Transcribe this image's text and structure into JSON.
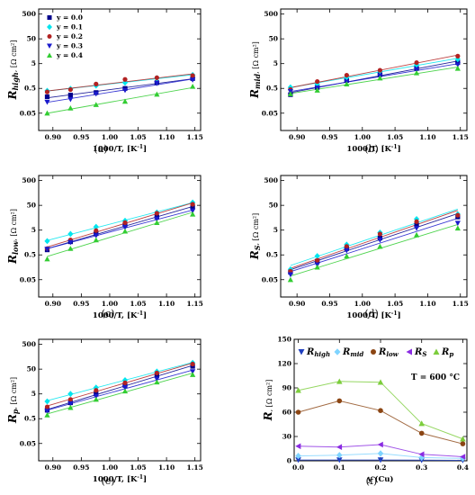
{
  "colors": {
    "y=0.0": "#00008b",
    "y=0.1": "#00e5ee",
    "y=0.2": "#b22222",
    "y=0.3": "#1a1acd",
    "y=0.4": "#32cd32",
    "R_high": "#1f3fbf",
    "R_mid": "#7fd4ff",
    "R_low": "#8b4513",
    "R_S": "#8a2be2",
    "R_p": "#7ccd3c"
  },
  "chart_data": [
    {
      "panel": "(a)",
      "type": "scatter",
      "y_scale": "log",
      "ylim": [
        0.01,
        800
      ],
      "xlim": [
        0.875,
        1.16
      ],
      "yticks": [
        "0.05",
        "0.5",
        "5",
        "50",
        "500"
      ],
      "xticks": [
        "0.90",
        "0.95",
        "1.00",
        "1.05",
        "1.10",
        "1.15"
      ],
      "xlabel": "1000/T, [K⁻¹]",
      "ylabel": "R_high, [Ω cm²]",
      "legend_position": "top-left",
      "x": [
        0.89,
        0.931,
        0.976,
        1.027,
        1.083,
        1.146
      ],
      "series": [
        {
          "name": "y = 0.0",
          "marker": "square",
          "values": [
            0.23,
            0.27,
            0.34,
            0.5,
            0.85,
            1.25
          ]
        },
        {
          "name": "y = 0.1",
          "marker": "diamond",
          "values": [
            0.4,
            0.48,
            0.65,
            0.85,
            1.3,
            1.75
          ]
        },
        {
          "name": "y = 0.2",
          "marker": "circle",
          "values": [
            0.36,
            0.45,
            0.75,
            1.15,
            1.35,
            1.65
          ]
        },
        {
          "name": "y = 0.3",
          "marker": "triangle-down",
          "values": [
            0.14,
            0.18,
            0.3,
            0.42,
            0.8,
            1.1
          ]
        },
        {
          "name": "y = 0.4",
          "marker": "triangle-up",
          "values": [
            0.05,
            0.08,
            0.11,
            0.15,
            0.29,
            0.6
          ]
        }
      ]
    },
    {
      "panel": "(b)",
      "type": "scatter",
      "y_scale": "log",
      "ylim": [
        0.01,
        800
      ],
      "xlim": [
        0.875,
        1.16
      ],
      "yticks": [
        "0.05",
        "0.5",
        "5",
        "50",
        "500"
      ],
      "xticks": [
        "0.90",
        "0.95",
        "1.00",
        "1.05",
        "1.10",
        "1.15"
      ],
      "xlabel": "1000/T, [K⁻¹]",
      "ylabel": "R_mid, [Ω cm²]",
      "x": [
        0.89,
        0.931,
        0.976,
        1.027,
        1.083,
        1.146
      ],
      "series": [
        {
          "name": "y = 0.0",
          "marker": "square",
          "values": [
            0.28,
            0.55,
            1.05,
            1.8,
            3.2,
            5.5
          ]
        },
        {
          "name": "y = 0.1",
          "marker": "diamond",
          "values": [
            0.55,
            0.75,
            1.4,
            2.5,
            4.5,
            7.5
          ]
        },
        {
          "name": "y = 0.2",
          "marker": "circle",
          "values": [
            0.45,
            0.95,
            1.7,
            2.7,
            5.5,
            10.0
          ]
        },
        {
          "name": "y = 0.3",
          "marker": "triangle-down",
          "values": [
            0.38,
            0.52,
            0.9,
            1.6,
            2.9,
            4.5
          ]
        },
        {
          "name": "y = 0.4",
          "marker": "triangle-up",
          "values": [
            0.3,
            0.42,
            0.75,
            1.3,
            2.1,
            3.2
          ]
        }
      ]
    },
    {
      "panel": "(c)",
      "type": "scatter",
      "y_scale": "log",
      "ylim": [
        0.01,
        800
      ],
      "xlim": [
        0.875,
        1.16
      ],
      "yticks": [
        "0.05",
        "0.5",
        "5",
        "50",
        "500"
      ],
      "xticks": [
        "0.90",
        "0.95",
        "1.00",
        "1.05",
        "1.10",
        "1.15"
      ],
      "xlabel": "1000/T, [K⁻¹]",
      "ylabel": "R_low, [Ω cm²]",
      "x": [
        0.89,
        0.931,
        0.976,
        1.027,
        1.083,
        1.146
      ],
      "series": [
        {
          "name": "y = 0.0",
          "marker": "square",
          "values": [
            0.8,
            1.7,
            3.6,
            8.0,
            17.0,
            42.0
          ]
        },
        {
          "name": "y = 0.1",
          "marker": "diamond",
          "values": [
            1.8,
            3.5,
            6.8,
            12.0,
            26.0,
            65.0
          ]
        },
        {
          "name": "y = 0.2",
          "marker": "circle",
          "values": [
            0.9,
            2.0,
            4.8,
            10.0,
            24.0,
            55.0
          ]
        },
        {
          "name": "y = 0.3",
          "marker": "triangle-down",
          "values": [
            0.85,
            1.6,
            3.0,
            6.5,
            14.0,
            30.0
          ]
        },
        {
          "name": "y = 0.4",
          "marker": "triangle-up",
          "values": [
            0.34,
            0.9,
            2.0,
            4.5,
            10.0,
            22.0
          ]
        }
      ]
    },
    {
      "panel": "(d)",
      "type": "scatter",
      "y_scale": "log",
      "ylim": [
        0.01,
        800
      ],
      "xlim": [
        0.875,
        1.16
      ],
      "yticks": [
        "0.05",
        "0.5",
        "5",
        "50",
        "500"
      ],
      "xticks": [
        "0.90",
        "0.95",
        "1.00",
        "1.05",
        "1.10",
        "1.15"
      ],
      "xlabel": "1000/T, [K⁻¹]",
      "ylabel": "R_S, [Ω cm²]",
      "x": [
        0.89,
        0.931,
        0.976,
        1.027,
        1.083,
        1.146
      ],
      "series": [
        {
          "name": "y = 0.0",
          "marker": "square",
          "values": [
            0.1,
            0.28,
            0.9,
            2.4,
            8.0,
            17.0
          ]
        },
        {
          "name": "y = 0.1",
          "marker": "diamond",
          "values": [
            0.13,
            0.45,
            1.3,
            4.0,
            14.0,
            22.0
          ]
        },
        {
          "name": "y = 0.2",
          "marker": "circle",
          "values": [
            0.11,
            0.3,
            1.1,
            3.5,
            11.0,
            20.0
          ]
        },
        {
          "name": "y = 0.3",
          "marker": "triangle-down",
          "values": [
            0.08,
            0.2,
            0.75,
            2.0,
            6.0,
            9.5
          ]
        },
        {
          "name": "y = 0.4",
          "marker": "triangle-up",
          "values": [
            0.05,
            0.16,
            0.45,
            1.1,
            3.2,
            6.0
          ]
        }
      ]
    },
    {
      "panel": "(e)",
      "type": "scatter",
      "y_scale": "log",
      "ylim": [
        0.01,
        800
      ],
      "xlim": [
        0.875,
        1.16
      ],
      "yticks": [
        "0.05",
        "0.5",
        "5",
        "50",
        "500"
      ],
      "xticks": [
        "0.90",
        "0.95",
        "1.00",
        "1.05",
        "1.10",
        "1.15"
      ],
      "xlabel": "1000/T, [K⁻¹]",
      "ylabel": "R_p, [Ω cm²]",
      "x": [
        0.89,
        0.931,
        0.976,
        1.027,
        1.083,
        1.146
      ],
      "series": [
        {
          "name": "y = 0.0",
          "marker": "square",
          "values": [
            1.1,
            2.2,
            5.0,
            11.0,
            27.0,
            65.0
          ]
        },
        {
          "name": "y = 0.1",
          "marker": "diamond",
          "values": [
            2.5,
            5.0,
            9.0,
            18.0,
            40.0,
            90.0
          ]
        },
        {
          "name": "y = 0.2",
          "marker": "circle",
          "values": [
            1.5,
            3.0,
            7.0,
            14.0,
            35.0,
            80.0
          ]
        },
        {
          "name": "y = 0.3",
          "marker": "triangle-down",
          "values": [
            1.0,
            2.0,
            4.0,
            9.0,
            20.0,
            40.0
          ]
        },
        {
          "name": "y = 0.4",
          "marker": "triangle-up",
          "values": [
            0.7,
            1.4,
            3.0,
            6.5,
            15.0,
            30.0
          ]
        }
      ]
    },
    {
      "panel": "(f)",
      "type": "line",
      "y_scale": "linear",
      "ylim": [
        0,
        150
      ],
      "xlim": [
        -0.01,
        0.41
      ],
      "yticks": [
        "0",
        "30",
        "60",
        "90",
        "120",
        "150"
      ],
      "xticks": [
        "0.0",
        "0.1",
        "0.2",
        "0.3",
        "0.4"
      ],
      "xlabel": "y (Cu)",
      "ylabel": "R, [Ω cm²]",
      "annotation": "T = 600 °C",
      "legend_position": "top",
      "x": [
        0.0,
        0.1,
        0.2,
        0.3,
        0.4
      ],
      "series": [
        {
          "name": "R_high",
          "sub": "high",
          "marker": "triangle-down",
          "values": [
            1.0,
            1.0,
            1.0,
            0.8,
            0.6
          ]
        },
        {
          "name": "R_mid",
          "sub": "mid",
          "marker": "diamond",
          "values": [
            6.0,
            7.0,
            9.0,
            4.0,
            3.0
          ]
        },
        {
          "name": "R_low",
          "sub": "low",
          "marker": "circle",
          "values": [
            60.0,
            74.0,
            62.0,
            34.0,
            21.0
          ]
        },
        {
          "name": "R_S",
          "sub": "S",
          "marker": "triangle-left",
          "values": [
            18.0,
            17.0,
            20.0,
            8.0,
            5.0
          ]
        },
        {
          "name": "R_p",
          "sub": "p",
          "marker": "triangle-up",
          "values": [
            87.0,
            98.0,
            97.0,
            46.0,
            27.0
          ]
        }
      ]
    }
  ],
  "captions": [
    "(a)",
    "(b)",
    "(c)",
    "(d)",
    "(e)",
    "(f)"
  ]
}
